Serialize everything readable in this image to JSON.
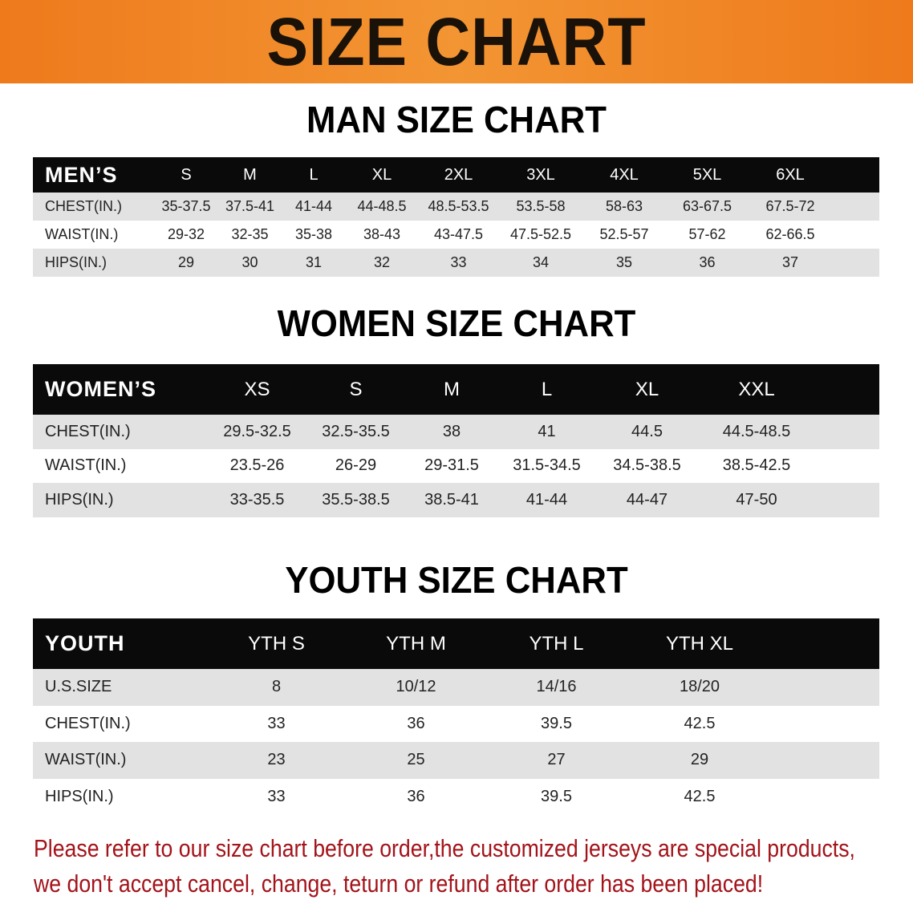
{
  "title": "SIZE CHART",
  "men": {
    "title": "MAN SIZE CHART",
    "header": [
      "MEN’S",
      "S",
      "M",
      "L",
      "XL",
      "2XL",
      "3XL",
      "4XL",
      "5XL",
      "6XL"
    ],
    "rows": [
      [
        "CHEST(IN.)",
        "35-37.5",
        "37.5-41",
        "41-44",
        "44-48.5",
        "48.5-53.5",
        "53.5-58",
        "58-63",
        "63-67.5",
        "67.5-72"
      ],
      [
        "WAIST(IN.)",
        "29-32",
        "32-35",
        "35-38",
        "38-43",
        "43-47.5",
        "47.5-52.5",
        "52.5-57",
        "57-62",
        "62-66.5"
      ],
      [
        "HIPS(IN.)",
        "29",
        "30",
        "31",
        "32",
        "33",
        "34",
        "35",
        "36",
        "37"
      ]
    ]
  },
  "women": {
    "title": "WOMEN SIZE CHART",
    "header": [
      "WOMEN’S",
      "XS",
      "S",
      "M",
      "L",
      "XL",
      "XXL"
    ],
    "rows": [
      [
        "CHEST(IN.)",
        "29.5-32.5",
        "32.5-35.5",
        "38",
        "41",
        "44.5",
        "44.5-48.5"
      ],
      [
        "WAIST(IN.)",
        "23.5-26",
        "26-29",
        "29-31.5",
        "31.5-34.5",
        "34.5-38.5",
        "38.5-42.5"
      ],
      [
        "HIPS(IN.)",
        "33-35.5",
        "35.5-38.5",
        "38.5-41",
        "41-44",
        "44-47",
        "47-50"
      ]
    ]
  },
  "youth": {
    "title": "YOUTH SIZE CHART",
    "header": [
      "YOUTH",
      "YTH S",
      "YTH M",
      "YTH L",
      "YTH XL"
    ],
    "rows": [
      [
        "U.S.SIZE",
        "8",
        "10/12",
        "14/16",
        "18/20"
      ],
      [
        "CHEST(IN.)",
        "33",
        "36",
        "39.5",
        "42.5"
      ],
      [
        "WAIST(IN.)",
        "23",
        "25",
        "27",
        "29"
      ],
      [
        "HIPS(IN.)",
        "33",
        "36",
        "39.5",
        "42.5"
      ]
    ]
  },
  "notice": [
    "Please refer to our size chart before order,the customized jerseys are special products,",
    "we don't accept cancel, change, teturn or refund after order has been placed!"
  ],
  "colors": {
    "banner": "#f08524",
    "header_row": "#0a0a0a",
    "stripe": "#e2e2e2",
    "notice": "#a3131a"
  }
}
